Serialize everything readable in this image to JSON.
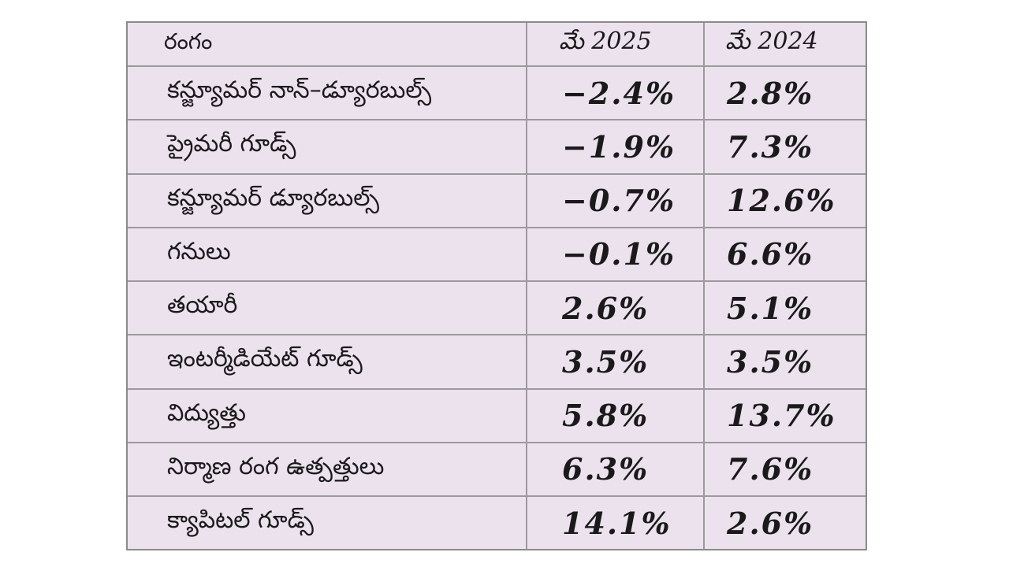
{
  "table": {
    "headers": {
      "sector": "రంగం",
      "year1": "మే 2025",
      "year2": "మే 2024"
    },
    "rows": [
      {
        "sector": "కన్జ్యూమర్ నాన్–డ్యూరబుల్స్",
        "may2025": "−2.4%",
        "may2024": "2.8%"
      },
      {
        "sector": "ప్రైమరీ గూడ్స్",
        "may2025": "−1.9%",
        "may2024": "7.3%"
      },
      {
        "sector": "కన్జ్యూమర్ డ్యూరబుల్స్",
        "may2025": "−0.7%",
        "may2024": "12.6%"
      },
      {
        "sector": "గనులు",
        "may2025": "−0.1%",
        "may2024": "6.6%"
      },
      {
        "sector": "తయారీ",
        "may2025": "2.6%",
        "may2024": "5.1%"
      },
      {
        "sector": "ఇంటర్మీడియేట్ గూడ్స్",
        "may2025": "3.5%",
        "may2024": "3.5%"
      },
      {
        "sector": "విద్యుత్తు",
        "may2025": "5.8%",
        "may2024": "13.7%"
      },
      {
        "sector": "నిర్మాణ రంగ ఉత్పత్తులు",
        "may2025": "6.3%",
        "may2024": "7.6%"
      },
      {
        "sector": "క్యాపిటల్ గూడ్స్",
        "may2025": "14.1%",
        "may2024": "2.6%"
      }
    ]
  },
  "colors": {
    "background": "#ece2ee",
    "grid": "#9a9a9a",
    "text": "#1a1a1a"
  }
}
